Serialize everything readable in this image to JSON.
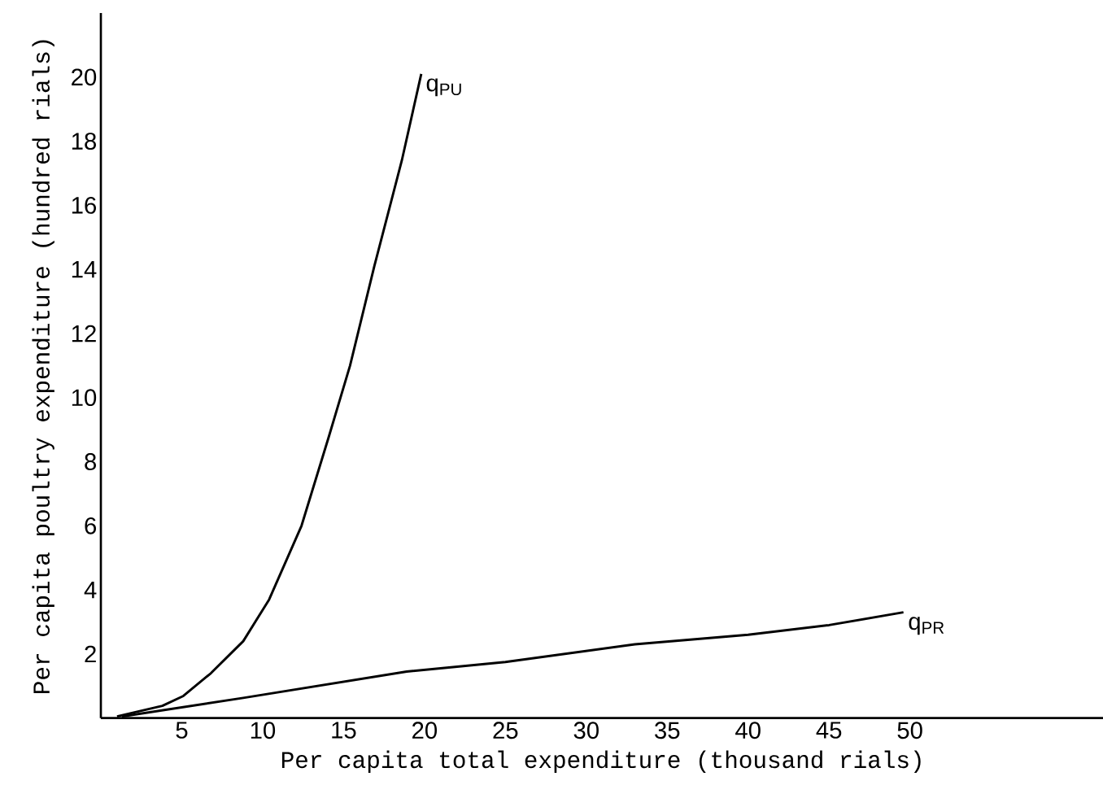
{
  "chart_data": {
    "type": "line",
    "xlabel": "Per capita total expenditure (thousand rials)",
    "ylabel": "Per capita poultry expenditure (hundred rials)",
    "xlim": [
      0,
      62
    ],
    "ylim": [
      0,
      22
    ],
    "xticks": [
      5,
      10,
      15,
      20,
      25,
      30,
      35,
      40,
      45,
      50
    ],
    "yticks": [
      2,
      4,
      6,
      8,
      10,
      12,
      14,
      16,
      18,
      20
    ],
    "grid": false,
    "legend": false,
    "marker": "none",
    "line_style": "solid",
    "series": [
      {
        "name": "q$_{PU}$",
        "color": "#000000",
        "x": [
          1.0,
          3.8,
          5.1,
          6.8,
          8.8,
          10.4,
          12.4,
          14.1,
          15.4,
          16.9,
          18.6,
          19.8
        ],
        "values": [
          0.05,
          0.38,
          0.69,
          1.4,
          2.4,
          3.7,
          6.0,
          8.8,
          11.0,
          14.1,
          17.4,
          20.1
        ]
      },
      {
        "name": "q$_{PR}$",
        "color": "#000000",
        "x": [
          1.3,
          8.8,
          18.9,
          25,
          33,
          40,
          45,
          49.6
        ],
        "values": [
          0.05,
          0.63,
          1.45,
          1.75,
          2.3,
          2.6,
          2.9,
          3.3
        ]
      }
    ]
  }
}
